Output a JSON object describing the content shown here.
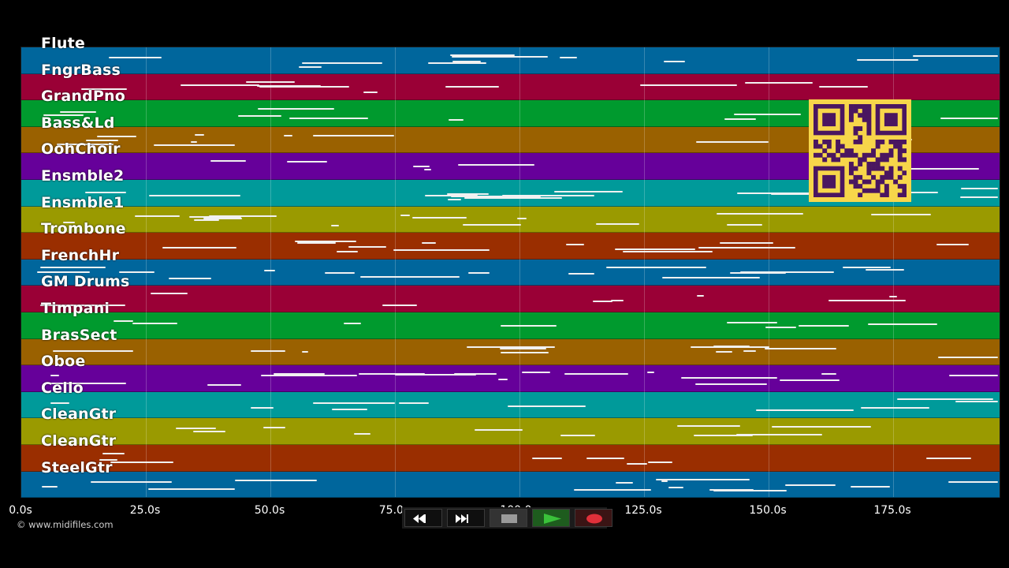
{
  "tracks": [
    {
      "name": "Flute",
      "color": "#00669c"
    },
    {
      "name": "FngrBass",
      "color": "#9a0036"
    },
    {
      "name": "GrandPno",
      "color": "#009a2e"
    },
    {
      "name": "Bass&Ld",
      "color": "#9a6100"
    },
    {
      "name": "OohChoir",
      "color": "#66009a"
    },
    {
      "name": "Ensmble2",
      "color": "#009a9a"
    },
    {
      "name": "Ensmble1",
      "color": "#9a9a00"
    },
    {
      "name": "Trombone",
      "color": "#9a2e00"
    },
    {
      "name": "FrenchHr",
      "color": "#00669c"
    },
    {
      "name": "GM Drums",
      "color": "#9a0036"
    },
    {
      "name": "Timpani",
      "color": "#009a2e"
    },
    {
      "name": "BrasSect",
      "color": "#9a6100"
    },
    {
      "name": "Oboe",
      "color": "#66009a"
    },
    {
      "name": "Cello",
      "color": "#009a9a"
    },
    {
      "name": "CleanGtr",
      "color": "#9a9a00"
    },
    {
      "name": "CleanGtr",
      "color": "#9a2e00"
    },
    {
      "name": "SteelGtr",
      "color": "#00669c"
    }
  ],
  "timeline": {
    "ticks": [
      "0.0s",
      "25.0s",
      "50.0s",
      "75.0s",
      "100.0s",
      "125.0s",
      "150.0s",
      "175.0s"
    ]
  },
  "copyright": "© www.midifiles.com",
  "transport": {
    "buttons": [
      "rewind",
      "fast-forward",
      "stop",
      "play",
      "record"
    ],
    "colors": {
      "play": "#2aa12a",
      "record": "#e0303a",
      "stop": "#9a9a9a"
    }
  },
  "qr": {
    "color": "#f7d64a",
    "module_color": "#4a1660"
  }
}
